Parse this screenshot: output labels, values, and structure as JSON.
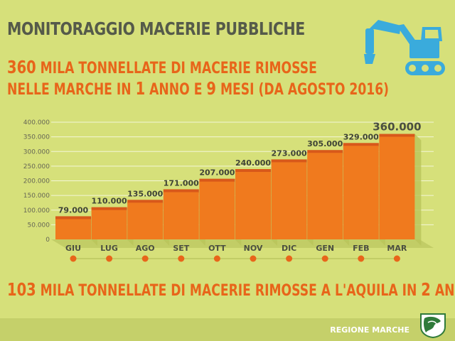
{
  "header": {
    "title": "MONITORAGGIO MACERIE PUBBLICHE",
    "line1_num": "360",
    "line1_text": " MILA TONNELLATE DI MACERIE RIMOSSE",
    "line2_a": "NELLE MARCHE IN ",
    "line2_num1": "1",
    "line2_b": " ANNO E ",
    "line2_num2": "9",
    "line2_c": " MESI (DA AGOSTO 2016)"
  },
  "footer": {
    "num1": "103",
    "text1": " MILA TONNELLATE DI MACERIE RIMOSSE A L'AQUILA IN ",
    "num2": "2",
    "text2": " ANNI",
    "region": "REGIONE MARCHE"
  },
  "colors": {
    "background": "#d6e07a",
    "bar_front": "#f07a1e",
    "bar_top": "#e0621a",
    "title": "#555a4a",
    "accent": "#e8651a",
    "icon_blue": "#3aabdc"
  },
  "icons": [
    "excavator-icon",
    "regione-marche-logo"
  ],
  "chart_data": {
    "type": "bar",
    "title": "",
    "xlabel": "",
    "ylabel": "",
    "categories": [
      "GIU",
      "LUG",
      "AGO",
      "SET",
      "OTT",
      "NOV",
      "DIC",
      "GEN",
      "FEB",
      "MAR"
    ],
    "values": [
      79000,
      110000,
      135000,
      171000,
      207000,
      240000,
      273000,
      305000,
      329000,
      360000
    ],
    "value_labels": [
      "79.000",
      "110.000",
      "135.000",
      "171.000",
      "207.000",
      "240.000",
      "273.000",
      "305.000",
      "329.000",
      "360.000"
    ],
    "ylim": [
      0,
      400000
    ],
    "yticks": [
      0,
      50000,
      100000,
      150000,
      200000,
      250000,
      300000,
      350000,
      400000
    ],
    "ytick_labels": [
      "0",
      "50.000",
      "100.000",
      "150.000",
      "200.000",
      "250.000",
      "300.000",
      "350.000",
      "400.000"
    ],
    "grid": true
  }
}
